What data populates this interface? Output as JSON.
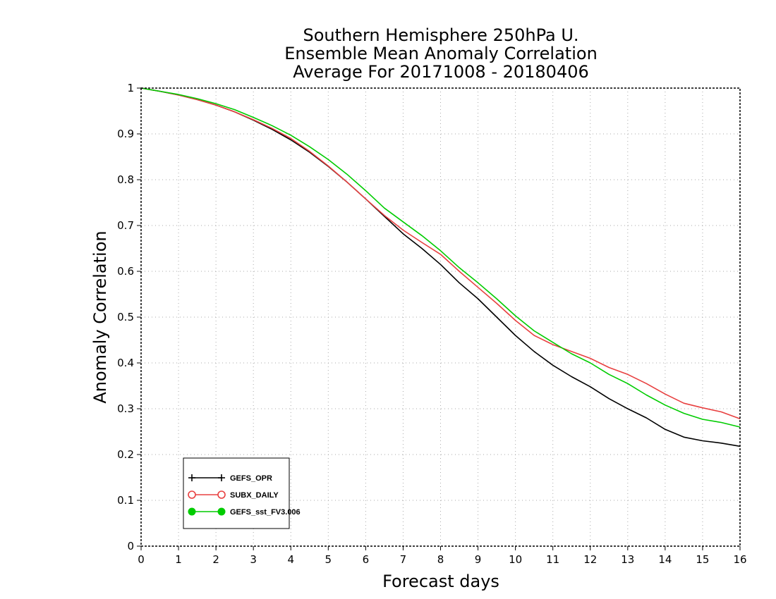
{
  "chart_data": {
    "type": "line",
    "title": [
      "Southern Hemisphere 250hPa U.",
      "Ensemble Mean Anomaly Correlation",
      "Average For 20171008 - 20180406"
    ],
    "xlabel": "Forecast days",
    "ylabel": "Anomaly Correlation",
    "xlim": [
      0,
      16
    ],
    "ylim": [
      0,
      1
    ],
    "x_ticks": [
      0,
      1,
      2,
      3,
      4,
      5,
      6,
      7,
      8,
      9,
      10,
      11,
      12,
      13,
      14,
      15,
      16
    ],
    "y_ticks": [
      0,
      0.1,
      0.2,
      0.3,
      0.4,
      0.5,
      0.6,
      0.7,
      0.8,
      0.9,
      1
    ],
    "grid": "dotted",
    "legend_position": "bottom-left",
    "x": [
      0,
      0.5,
      1,
      1.5,
      2,
      2.5,
      3,
      3.5,
      4,
      4.5,
      5,
      5.5,
      6,
      6.5,
      7,
      7.5,
      8,
      8.5,
      9,
      9.5,
      10,
      10.5,
      11,
      11.5,
      12,
      12.5,
      13,
      13.5,
      14,
      14.5,
      15,
      15.5,
      16
    ],
    "series": [
      {
        "name": "GEFS_OPR",
        "color": "#000000",
        "marker": "plus",
        "values": [
          1.0,
          0.993,
          0.985,
          0.975,
          0.963,
          0.948,
          0.93,
          0.91,
          0.887,
          0.86,
          0.829,
          0.795,
          0.758,
          0.72,
          0.682,
          0.65,
          0.615,
          0.575,
          0.54,
          0.5,
          0.46,
          0.425,
          0.395,
          0.37,
          0.348,
          0.322,
          0.3,
          0.28,
          0.255,
          0.238,
          0.23,
          0.225,
          0.218
        ]
      },
      {
        "name": "SUBX_DAILY",
        "color": "#e84040",
        "marker": "open-circle",
        "values": [
          1.0,
          0.993,
          0.985,
          0.975,
          0.963,
          0.948,
          0.931,
          0.912,
          0.89,
          0.862,
          0.83,
          0.795,
          0.758,
          0.722,
          0.69,
          0.663,
          0.637,
          0.6,
          0.565,
          0.53,
          0.493,
          0.46,
          0.44,
          0.425,
          0.41,
          0.39,
          0.375,
          0.355,
          0.332,
          0.312,
          0.302,
          0.293,
          0.278
        ]
      },
      {
        "name": "GEFS_sst_FV3.006",
        "color": "#00cc00",
        "marker": "filled-circle",
        "values": [
          1.0,
          0.993,
          0.986,
          0.977,
          0.966,
          0.953,
          0.936,
          0.918,
          0.897,
          0.872,
          0.844,
          0.812,
          0.776,
          0.738,
          0.708,
          0.678,
          0.645,
          0.608,
          0.575,
          0.54,
          0.503,
          0.47,
          0.445,
          0.42,
          0.4,
          0.375,
          0.355,
          0.33,
          0.308,
          0.29,
          0.277,
          0.27,
          0.26
        ]
      }
    ]
  }
}
